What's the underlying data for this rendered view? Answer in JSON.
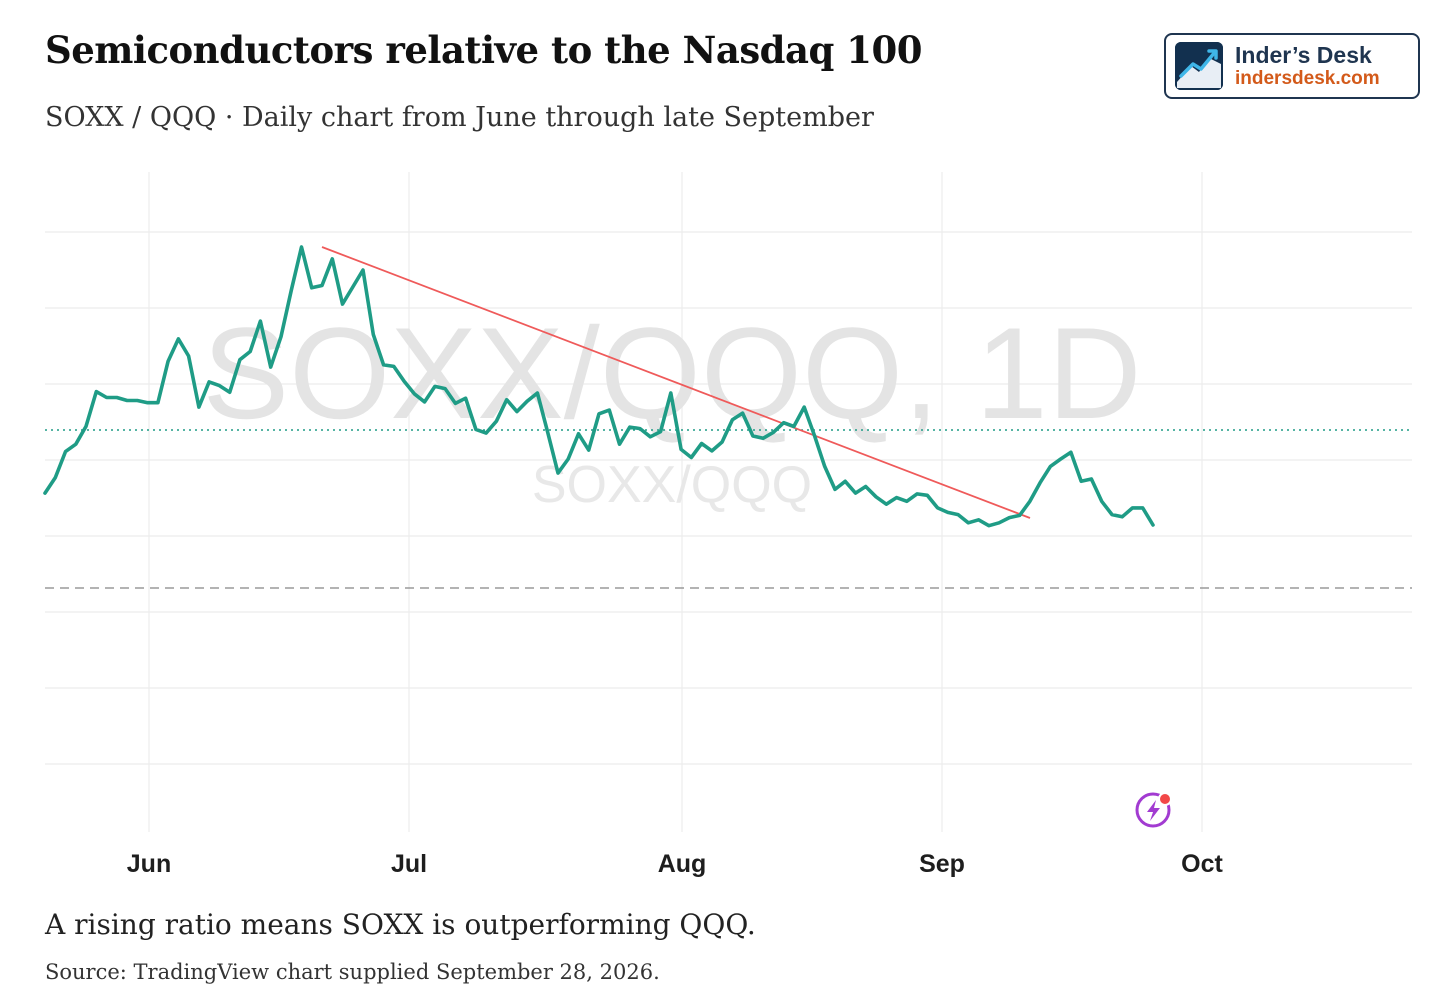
{
  "header": {
    "title": "Semiconductors relative to the Nasdaq 100",
    "subtitle": "SOXX / QQQ · Daily chart from June through late September"
  },
  "logo": {
    "name": "Inder’s Desk",
    "url": "indersdesk.com"
  },
  "footer": {
    "caption": "A rising ratio means SOXX is outperforming QQQ.",
    "source": "Source: TradingView chart supplied September 28, 2026."
  },
  "colors": {
    "line": "#1f9c86",
    "trendline": "#ef5a5a",
    "grid": "#ececec",
    "watermark": "#e6e6e6",
    "logo_dark": "#1f3550",
    "logo_accent": "#d35a1a",
    "alert_icon": "#a23bd1"
  },
  "chart_data": {
    "type": "line",
    "watermark": "SOXX/QQQ, 1D",
    "watermark_sub": "SOXX/QQQ",
    "xaxis": {
      "ticks": [
        {
          "label": "Jun",
          "day": 5
        },
        {
          "label": "Jul",
          "day": 35
        },
        {
          "label": "Aug",
          "day": 66
        },
        {
          "label": "Sep",
          "day": 97
        },
        {
          "label": "Oct",
          "day": 127
        }
      ]
    },
    "grid": true,
    "yrange": [
      0,
      100
    ],
    "series": [
      {
        "values": [
          [
            -7,
            41.8
          ],
          [
            -6,
            43.9
          ],
          [
            -5,
            47.4
          ],
          [
            -4,
            48.4
          ],
          [
            -3,
            50.8
          ],
          [
            -2,
            55.5
          ],
          [
            -1,
            54.7
          ],
          [
            0,
            54.7
          ],
          [
            1,
            54.3
          ],
          [
            2,
            54.3
          ],
          [
            3,
            54.0
          ],
          [
            4,
            54.0
          ],
          [
            5,
            59.6
          ],
          [
            6,
            62.6
          ],
          [
            7,
            60.3
          ],
          [
            8,
            53.4
          ],
          [
            9,
            56.8
          ],
          [
            10,
            56.3
          ],
          [
            11,
            55.4
          ],
          [
            12,
            59.8
          ],
          [
            13,
            60.9
          ],
          [
            14,
            65.0
          ],
          [
            15,
            58.8
          ],
          [
            16,
            62.9
          ],
          [
            17,
            69.1
          ],
          [
            18,
            75.0
          ],
          [
            19,
            69.5
          ],
          [
            20,
            69.8
          ],
          [
            21,
            73.4
          ],
          [
            22,
            67.3
          ],
          [
            23,
            69.6
          ],
          [
            24,
            71.9
          ],
          [
            25,
            63.2
          ],
          [
            26,
            59.1
          ],
          [
            27,
            58.9
          ],
          [
            28,
            56.9
          ],
          [
            29,
            55.2
          ],
          [
            30,
            54.1
          ],
          [
            31,
            56.2
          ],
          [
            32,
            55.9
          ],
          [
            33,
            53.9
          ],
          [
            34,
            54.6
          ],
          [
            35,
            50.4
          ],
          [
            36,
            49.9
          ],
          [
            37,
            51.5
          ],
          [
            38,
            54.4
          ],
          [
            39,
            52.8
          ],
          [
            40,
            54.2
          ],
          [
            41,
            55.3
          ],
          [
            42,
            50.0
          ],
          [
            43,
            44.5
          ],
          [
            44,
            46.4
          ],
          [
            45,
            49.8
          ],
          [
            46,
            47.6
          ],
          [
            47,
            52.5
          ],
          [
            48,
            53.0
          ],
          [
            49,
            48.4
          ],
          [
            50,
            50.7
          ],
          [
            51,
            50.5
          ],
          [
            52,
            49.4
          ],
          [
            53,
            50.1
          ],
          [
            54,
            55.3
          ],
          [
            55,
            47.7
          ],
          [
            56,
            46.6
          ],
          [
            57,
            48.5
          ],
          [
            58,
            47.5
          ],
          [
            59,
            48.7
          ],
          [
            60,
            51.7
          ],
          [
            61,
            52.6
          ],
          [
            62,
            49.5
          ],
          [
            63,
            49.2
          ],
          [
            64,
            50.0
          ],
          [
            65,
            51.3
          ],
          [
            66,
            50.8
          ],
          [
            67,
            53.4
          ],
          [
            68,
            49.6
          ],
          [
            69,
            45.4
          ],
          [
            70,
            42.3
          ],
          [
            71,
            43.4
          ],
          [
            72,
            41.8
          ],
          [
            73,
            42.7
          ],
          [
            74,
            41.3
          ],
          [
            75,
            40.3
          ],
          [
            76,
            41.2
          ],
          [
            77,
            40.7
          ],
          [
            78,
            41.7
          ],
          [
            79,
            41.5
          ],
          [
            80,
            39.8
          ],
          [
            81,
            39.2
          ],
          [
            82,
            38.9
          ],
          [
            83,
            37.8
          ],
          [
            84,
            38.2
          ],
          [
            85,
            37.4
          ],
          [
            86,
            37.8
          ],
          [
            87,
            38.5
          ],
          [
            88,
            38.8
          ],
          [
            89,
            40.7
          ],
          [
            90,
            43.2
          ],
          [
            91,
            45.4
          ],
          [
            92,
            46.4
          ],
          [
            93,
            47.3
          ],
          [
            94,
            43.4
          ],
          [
            95,
            43.7
          ],
          [
            96,
            40.7
          ],
          [
            97,
            38.9
          ],
          [
            98,
            38.6
          ],
          [
            99,
            39.8
          ],
          [
            100,
            39.8
          ],
          [
            101,
            37.5
          ]
        ]
      }
    ]
  }
}
